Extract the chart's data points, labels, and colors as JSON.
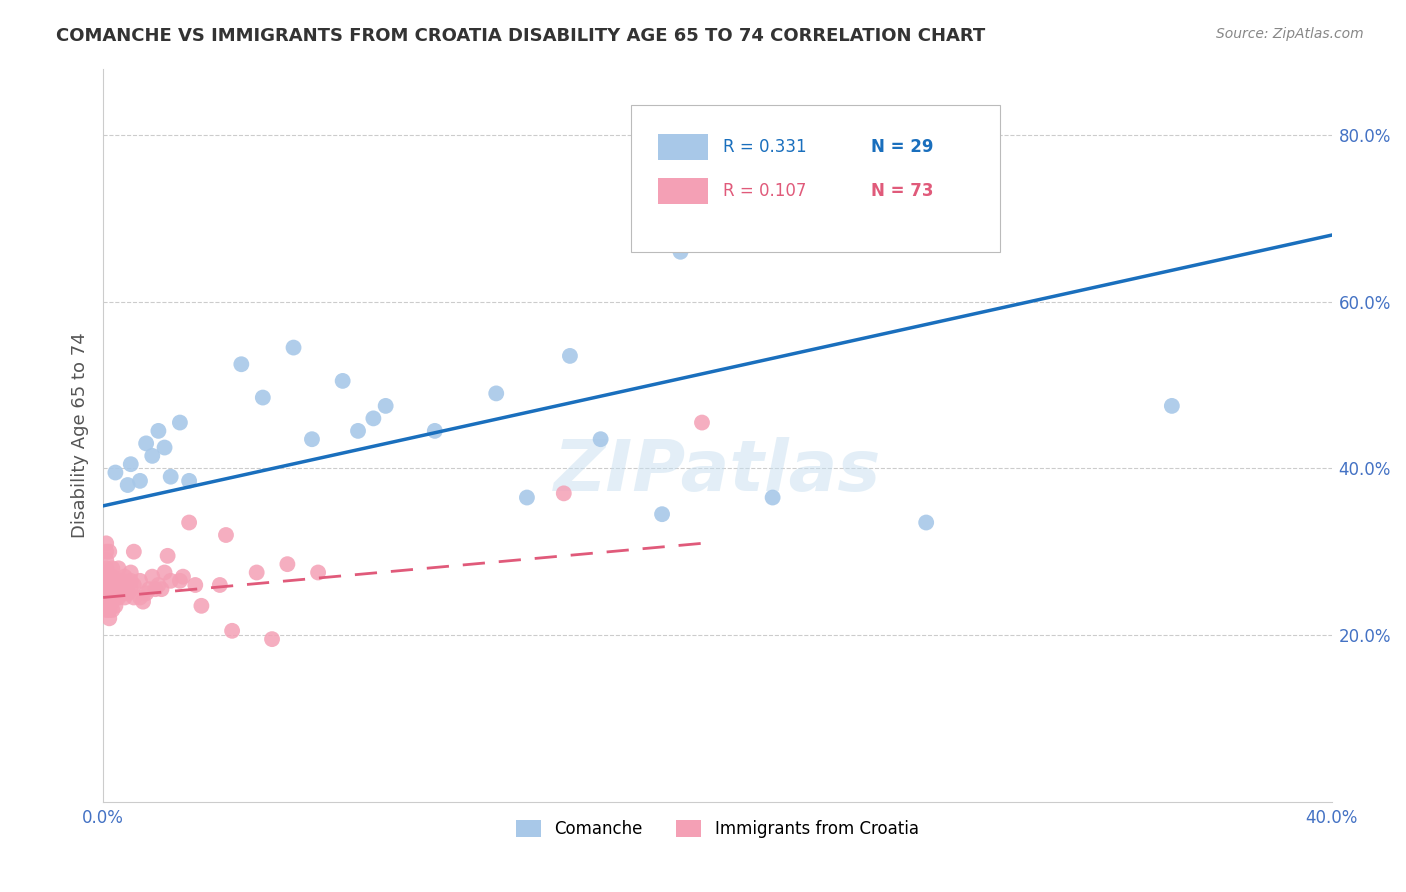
{
  "title": "COMANCHE VS IMMIGRANTS FROM CROATIA DISABILITY AGE 65 TO 74 CORRELATION CHART",
  "source": "Source: ZipAtlas.com",
  "ylabel": "Disability Age 65 to 74",
  "xlim": [
    0.0,
    0.4
  ],
  "ylim": [
    0.0,
    0.88
  ],
  "xtick_labels": [
    "0.0%",
    "",
    "",
    "",
    "40.0%"
  ],
  "xtick_vals": [
    0.0,
    0.1,
    0.2,
    0.3,
    0.4
  ],
  "ytick_labels": [
    "20.0%",
    "40.0%",
    "60.0%",
    "80.0%"
  ],
  "ytick_vals": [
    0.2,
    0.4,
    0.6,
    0.8
  ],
  "watermark": "ZIPatlas",
  "legend_blue_r": "R = 0.331",
  "legend_blue_n": "N = 29",
  "legend_pink_r": "R = 0.107",
  "legend_pink_n": "N = 73",
  "blue_color": "#a8c8e8",
  "pink_color": "#f4a0b5",
  "trendline_blue_color": "#1a6fbd",
  "trendline_pink_color": "#e05a7a",
  "blue_scatter_x": [
    0.004,
    0.008,
    0.009,
    0.012,
    0.014,
    0.016,
    0.018,
    0.02,
    0.022,
    0.025,
    0.028,
    0.045,
    0.052,
    0.062,
    0.068,
    0.078,
    0.083,
    0.088,
    0.092,
    0.108,
    0.128,
    0.138,
    0.152,
    0.162,
    0.182,
    0.188,
    0.218,
    0.268,
    0.348
  ],
  "blue_scatter_y": [
    0.395,
    0.38,
    0.405,
    0.385,
    0.43,
    0.415,
    0.445,
    0.425,
    0.39,
    0.455,
    0.385,
    0.525,
    0.485,
    0.545,
    0.435,
    0.505,
    0.445,
    0.46,
    0.475,
    0.445,
    0.49,
    0.365,
    0.535,
    0.435,
    0.345,
    0.66,
    0.365,
    0.335,
    0.475
  ],
  "pink_scatter_x": [
    0.001,
    0.001,
    0.001,
    0.001,
    0.001,
    0.001,
    0.001,
    0.001,
    0.001,
    0.001,
    0.001,
    0.002,
    0.002,
    0.002,
    0.002,
    0.002,
    0.002,
    0.002,
    0.003,
    0.003,
    0.003,
    0.003,
    0.003,
    0.003,
    0.004,
    0.004,
    0.004,
    0.004,
    0.005,
    0.005,
    0.005,
    0.005,
    0.005,
    0.006,
    0.006,
    0.006,
    0.007,
    0.007,
    0.007,
    0.008,
    0.008,
    0.009,
    0.009,
    0.009,
    0.01,
    0.01,
    0.01,
    0.012,
    0.012,
    0.013,
    0.014,
    0.015,
    0.016,
    0.017,
    0.018,
    0.019,
    0.02,
    0.021,
    0.022,
    0.025,
    0.026,
    0.028,
    0.03,
    0.032,
    0.038,
    0.04,
    0.042,
    0.05,
    0.055,
    0.06,
    0.07,
    0.15,
    0.195
  ],
  "pink_scatter_y": [
    0.23,
    0.24,
    0.25,
    0.26,
    0.265,
    0.27,
    0.275,
    0.28,
    0.29,
    0.3,
    0.31,
    0.22,
    0.23,
    0.245,
    0.255,
    0.26,
    0.27,
    0.3,
    0.23,
    0.24,
    0.245,
    0.255,
    0.27,
    0.28,
    0.235,
    0.245,
    0.255,
    0.265,
    0.245,
    0.25,
    0.255,
    0.265,
    0.28,
    0.25,
    0.255,
    0.265,
    0.245,
    0.255,
    0.27,
    0.25,
    0.26,
    0.255,
    0.265,
    0.275,
    0.245,
    0.26,
    0.3,
    0.245,
    0.265,
    0.24,
    0.25,
    0.255,
    0.27,
    0.255,
    0.26,
    0.255,
    0.275,
    0.295,
    0.265,
    0.265,
    0.27,
    0.335,
    0.26,
    0.235,
    0.26,
    0.32,
    0.205,
    0.275,
    0.195,
    0.285,
    0.275,
    0.37,
    0.455
  ],
  "blue_trendline_x": [
    0.0,
    0.4
  ],
  "blue_trendline_y": [
    0.355,
    0.68
  ],
  "pink_trendline_x": [
    0.0,
    0.195
  ],
  "pink_trendline_y": [
    0.245,
    0.31
  ],
  "background_color": "#ffffff",
  "grid_color": "#cccccc",
  "legend_bottom": [
    "Comanche",
    "Immigrants from Croatia"
  ]
}
